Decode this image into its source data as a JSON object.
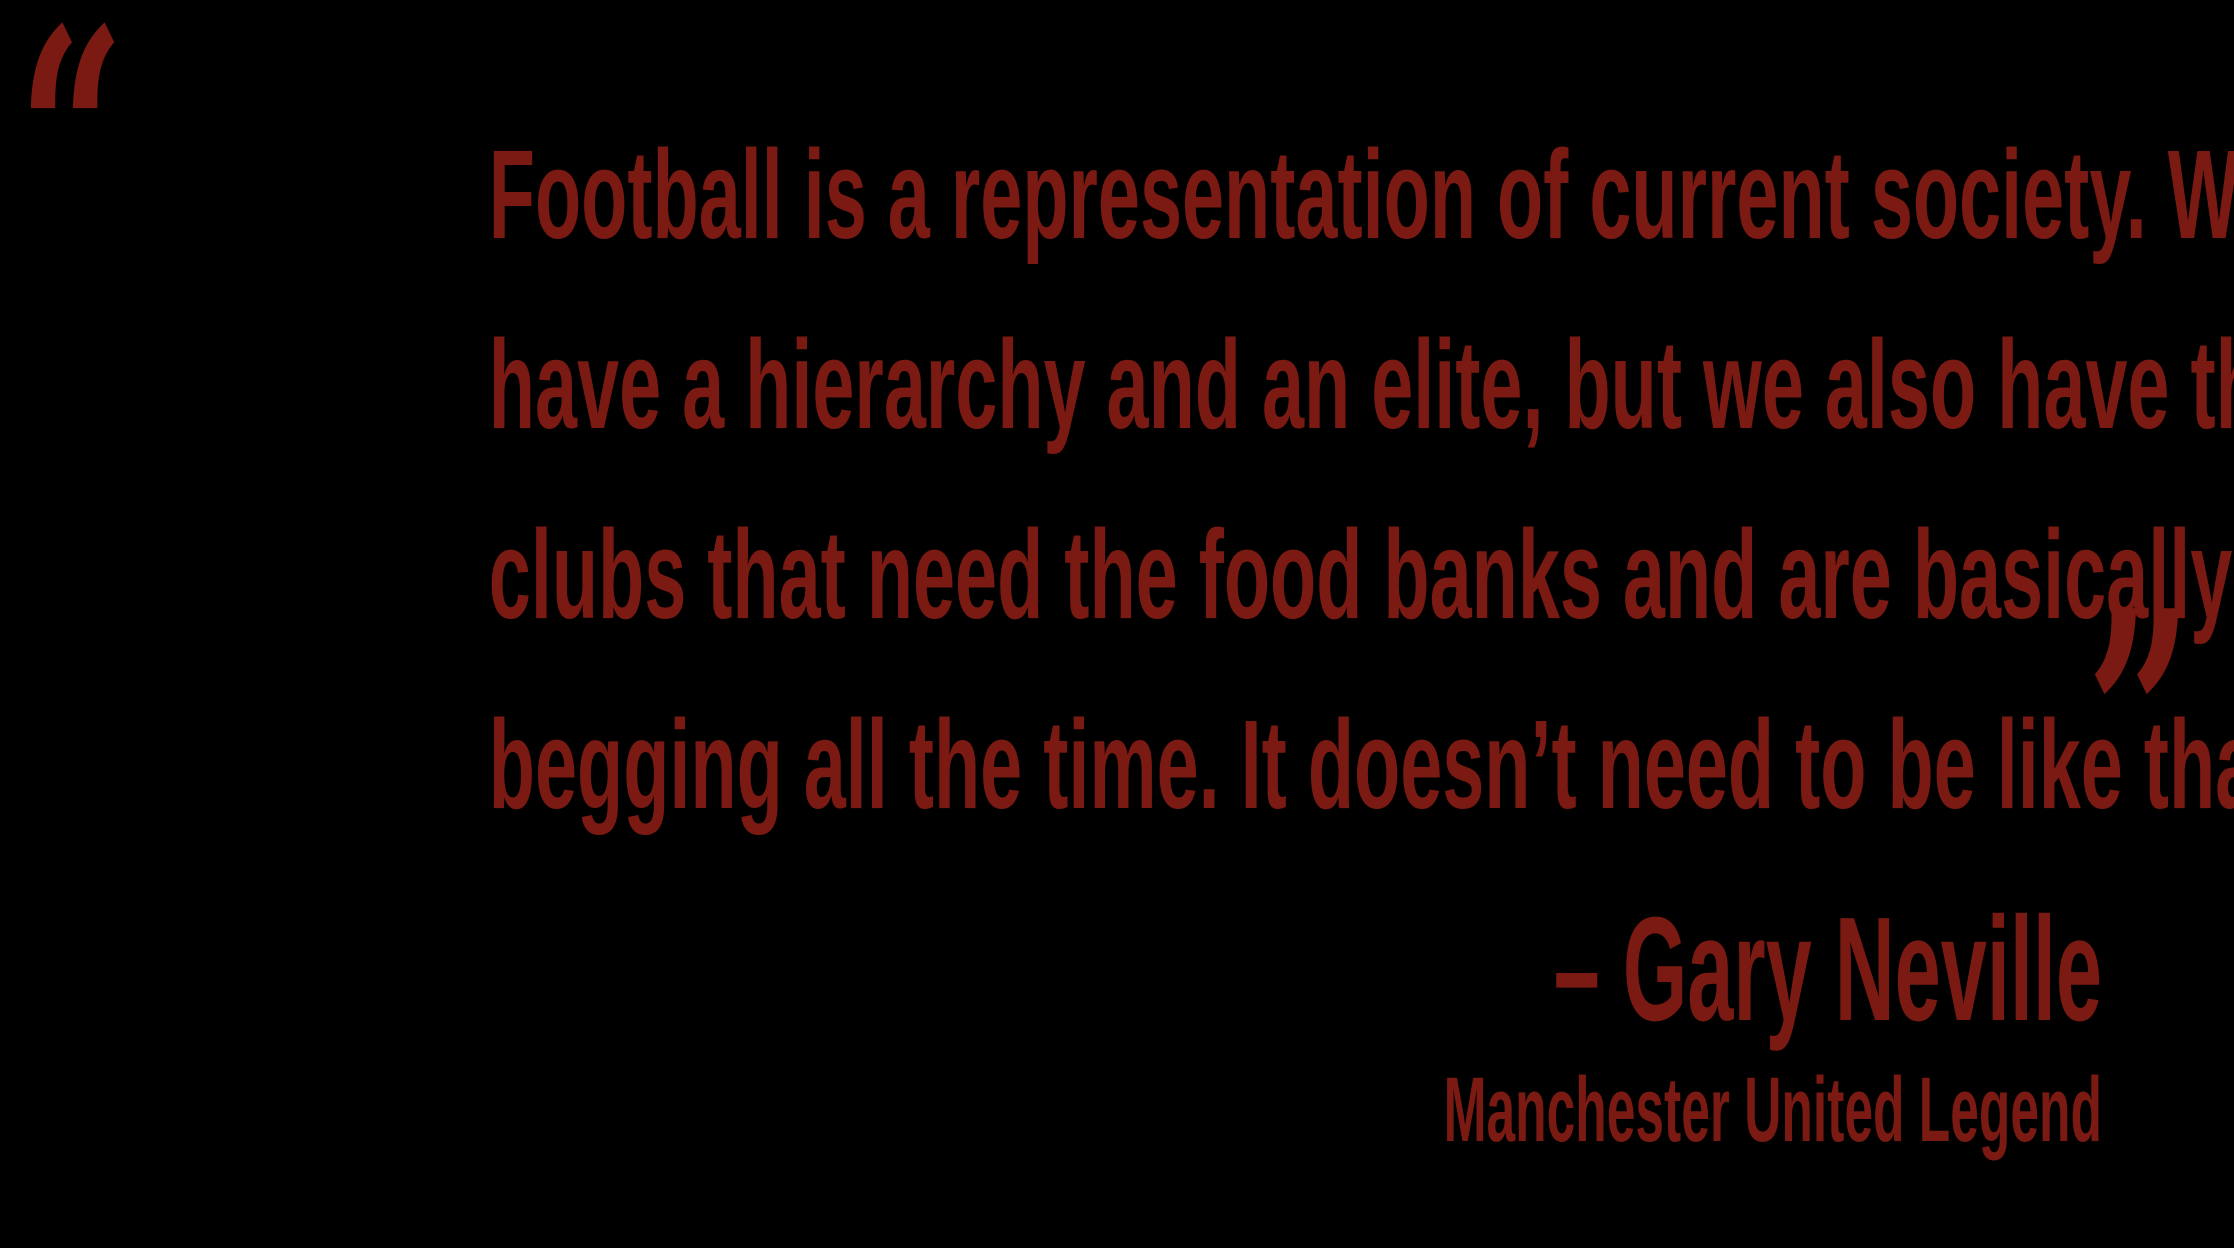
{
  "quote": {
    "open_mark": "“",
    "close_mark": "”",
    "lines": [
      "Football is a representation of current society. We",
      "have a hierarchy and an elite, but we also have the",
      "clubs that need the food banks and are basically",
      "begging all the time. It doesn’t need to be like that."
    ]
  },
  "attribution": {
    "name": "– Gary Neville",
    "title": "Manchester United Legend"
  },
  "colors": {
    "background": "#000000",
    "text": "#7a1a12"
  }
}
